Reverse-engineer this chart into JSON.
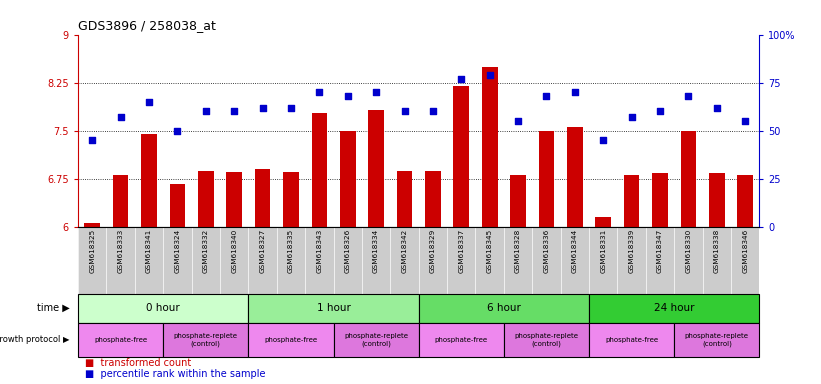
{
  "title": "GDS3896 / 258038_at",
  "samples": [
    "GSM618325",
    "GSM618333",
    "GSM618341",
    "GSM618324",
    "GSM618332",
    "GSM618340",
    "GSM618327",
    "GSM618335",
    "GSM618343",
    "GSM618326",
    "GSM618334",
    "GSM618342",
    "GSM618329",
    "GSM618337",
    "GSM618345",
    "GSM618328",
    "GSM618336",
    "GSM618344",
    "GSM618331",
    "GSM618339",
    "GSM618347",
    "GSM618330",
    "GSM618338",
    "GSM618346"
  ],
  "bar_values": [
    6.05,
    6.8,
    7.45,
    6.67,
    6.87,
    6.86,
    6.9,
    6.86,
    7.78,
    7.5,
    7.82,
    6.87,
    6.87,
    8.2,
    8.5,
    6.8,
    7.5,
    7.56,
    6.15,
    6.8,
    6.83,
    7.5,
    6.83,
    6.8
  ],
  "dot_values": [
    45,
    57,
    65,
    50,
    60,
    60,
    62,
    62,
    70,
    68,
    70,
    60,
    60,
    77,
    79,
    55,
    68,
    70,
    45,
    57,
    60,
    68,
    62,
    55
  ],
  "ylim_left": [
    6,
    9
  ],
  "ylim_right": [
    0,
    100
  ],
  "yticks_left": [
    6,
    6.75,
    7.5,
    8.25,
    9
  ],
  "yticks_right": [
    0,
    25,
    50,
    75,
    100
  ],
  "ytick_labels_right": [
    "0",
    "25",
    "50",
    "75",
    "100%"
  ],
  "hlines": [
    6.75,
    7.5,
    8.25
  ],
  "bar_color": "#cc0000",
  "dot_color": "#0000cc",
  "time_groups": [
    {
      "label": "0 hour",
      "start": 0,
      "end": 6,
      "color": "#ccffcc"
    },
    {
      "label": "1 hour",
      "start": 6,
      "end": 12,
      "color": "#99ee99"
    },
    {
      "label": "6 hour",
      "start": 12,
      "end": 18,
      "color": "#66dd66"
    },
    {
      "label": "24 hour",
      "start": 18,
      "end": 24,
      "color": "#33cc33"
    }
  ],
  "protocol_groups": [
    {
      "label": "phosphate-free",
      "start": 0,
      "end": 3
    },
    {
      "label": "phosphate-replete\n(control)",
      "start": 3,
      "end": 6
    },
    {
      "label": "phosphate-free",
      "start": 6,
      "end": 9
    },
    {
      "label": "phosphate-replete\n(control)",
      "start": 9,
      "end": 12
    },
    {
      "label": "phosphate-free",
      "start": 12,
      "end": 15
    },
    {
      "label": "phosphate-replete\n(control)",
      "start": 15,
      "end": 18
    },
    {
      "label": "phosphate-free",
      "start": 18,
      "end": 21
    },
    {
      "label": "phosphate-replete\n(control)",
      "start": 21,
      "end": 24
    }
  ],
  "proto_color_free": "#ee88ee",
  "proto_color_ctrl": "#dd77dd",
  "label_area_color": "#cccccc"
}
